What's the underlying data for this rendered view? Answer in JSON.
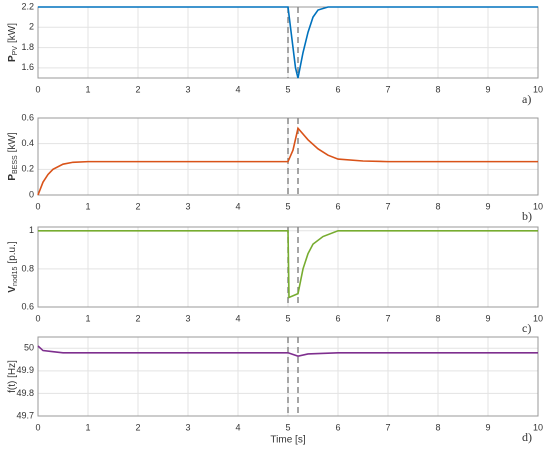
{
  "chart_data": [
    {
      "type": "line",
      "panel_label": "a)",
      "ylabel": {
        "main": "P",
        "sub": "PV",
        "unit": "[kW]"
      },
      "xlim": [
        0,
        10
      ],
      "xticks": [
        0,
        1,
        2,
        3,
        4,
        5,
        6,
        7,
        8,
        9,
        10
      ],
      "ylim": [
        1.5,
        2.2
      ],
      "yticks": [
        1.6,
        1.8,
        2,
        2.2
      ],
      "grid": true,
      "vlines": [
        5,
        5.2
      ],
      "series": [
        {
          "color": "#0072bd",
          "x": [
            0,
            5,
            5.05,
            5.1,
            5.15,
            5.2,
            5.3,
            5.4,
            5.5,
            5.6,
            5.8,
            10
          ],
          "values": [
            2.2,
            2.2,
            2.0,
            1.8,
            1.6,
            1.5,
            1.75,
            1.95,
            2.1,
            2.17,
            2.2,
            2.2
          ]
        }
      ]
    },
    {
      "type": "line",
      "panel_label": "b)",
      "ylabel": {
        "main": "P",
        "sub": "BESS",
        "unit": "[kW]"
      },
      "xlim": [
        0,
        10
      ],
      "xticks": [
        0,
        1,
        2,
        3,
        4,
        5,
        6,
        7,
        8,
        9,
        10
      ],
      "ylim": [
        0,
        0.6
      ],
      "yticks": [
        0,
        0.2,
        0.4,
        0.6
      ],
      "grid": true,
      "vlines": [
        5,
        5.2
      ],
      "series": [
        {
          "color": "#d95319",
          "x": [
            0,
            0.1,
            0.2,
            0.3,
            0.5,
            0.7,
            1,
            5,
            5.1,
            5.2,
            5.4,
            5.6,
            5.8,
            6,
            6.5,
            7,
            10
          ],
          "values": [
            0,
            0.1,
            0.16,
            0.2,
            0.24,
            0.255,
            0.26,
            0.26,
            0.35,
            0.52,
            0.43,
            0.36,
            0.31,
            0.28,
            0.265,
            0.26,
            0.26
          ]
        }
      ]
    },
    {
      "type": "line",
      "panel_label": "c)",
      "ylabel": {
        "main": "V",
        "sub": "nod15",
        "unit": "[p.u.]"
      },
      "xlim": [
        0,
        10
      ],
      "xticks": [
        0,
        1,
        2,
        3,
        4,
        5,
        6,
        7,
        8,
        9,
        10
      ],
      "ylim": [
        0.6,
        1.02
      ],
      "yticks": [
        0.6,
        0.8,
        1
      ],
      "grid": true,
      "vlines": [
        5,
        5.2
      ],
      "series": [
        {
          "color": "#77ac30",
          "x": [
            0,
            5,
            5.02,
            5.2,
            5.3,
            5.4,
            5.5,
            5.7,
            6,
            10
          ],
          "values": [
            1,
            1,
            0.65,
            0.67,
            0.8,
            0.88,
            0.93,
            0.97,
            1,
            1
          ]
        }
      ]
    },
    {
      "type": "line",
      "panel_label": "d)",
      "ylabel": {
        "main": "f(t) [Hz]"
      },
      "xlabel": "Time [s]",
      "xlim": [
        0,
        10
      ],
      "xticks": [
        0,
        1,
        2,
        3,
        4,
        5,
        6,
        7,
        8,
        9,
        10
      ],
      "ylim": [
        49.7,
        50.05
      ],
      "yticks": [
        49.7,
        49.8,
        49.9,
        50
      ],
      "grid": true,
      "vlines": [
        5,
        5.2
      ],
      "series": [
        {
          "color": "#7e2f8e",
          "x": [
            0,
            0.1,
            0.3,
            0.5,
            5,
            5.2,
            5.4,
            6,
            10
          ],
          "values": [
            50.01,
            49.99,
            49.985,
            49.98,
            49.98,
            49.965,
            49.975,
            49.98,
            49.98
          ]
        }
      ]
    }
  ]
}
